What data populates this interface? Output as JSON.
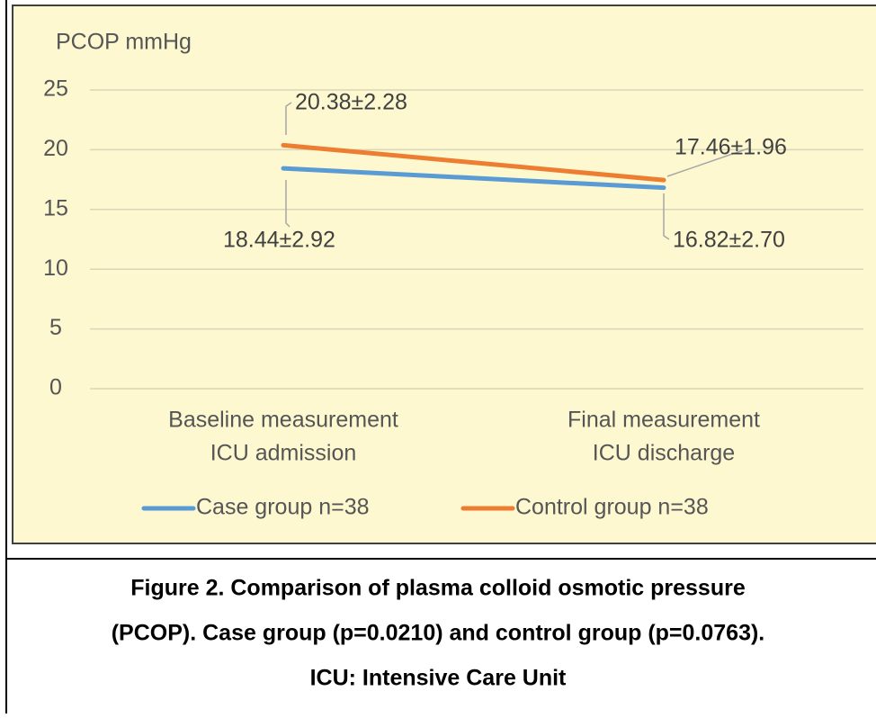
{
  "chart_data": {
    "type": "line",
    "y_label": "PCOP mmHg",
    "categories": [
      [
        "Baseline measurement",
        "ICU admission"
      ],
      [
        "Final measurement",
        "ICU discharge"
      ]
    ],
    "series": [
      {
        "name": "Case group n=38",
        "color": "#5b9bd5",
        "values": [
          18.44,
          16.82
        ],
        "value_labels": [
          "18.44±2.92",
          "16.82±2.70"
        ]
      },
      {
        "name": "Control group n=38",
        "color": "#ed7d31",
        "values": [
          20.38,
          17.46
        ],
        "value_labels": [
          "20.38±2.28",
          "17.46±1.96"
        ]
      }
    ],
    "ylim": [
      0,
      25
    ],
    "yticks": [
      0,
      5,
      10,
      15,
      20,
      25
    ],
    "grid": true,
    "legend": "bottom"
  },
  "caption": [
    "Figure 2. Comparison of plasma colloid osmotic pressure",
    "(PCOP). Case group (p=0.0210) and control group (p=0.0763).",
    "ICU: Intensive Care Unit"
  ]
}
